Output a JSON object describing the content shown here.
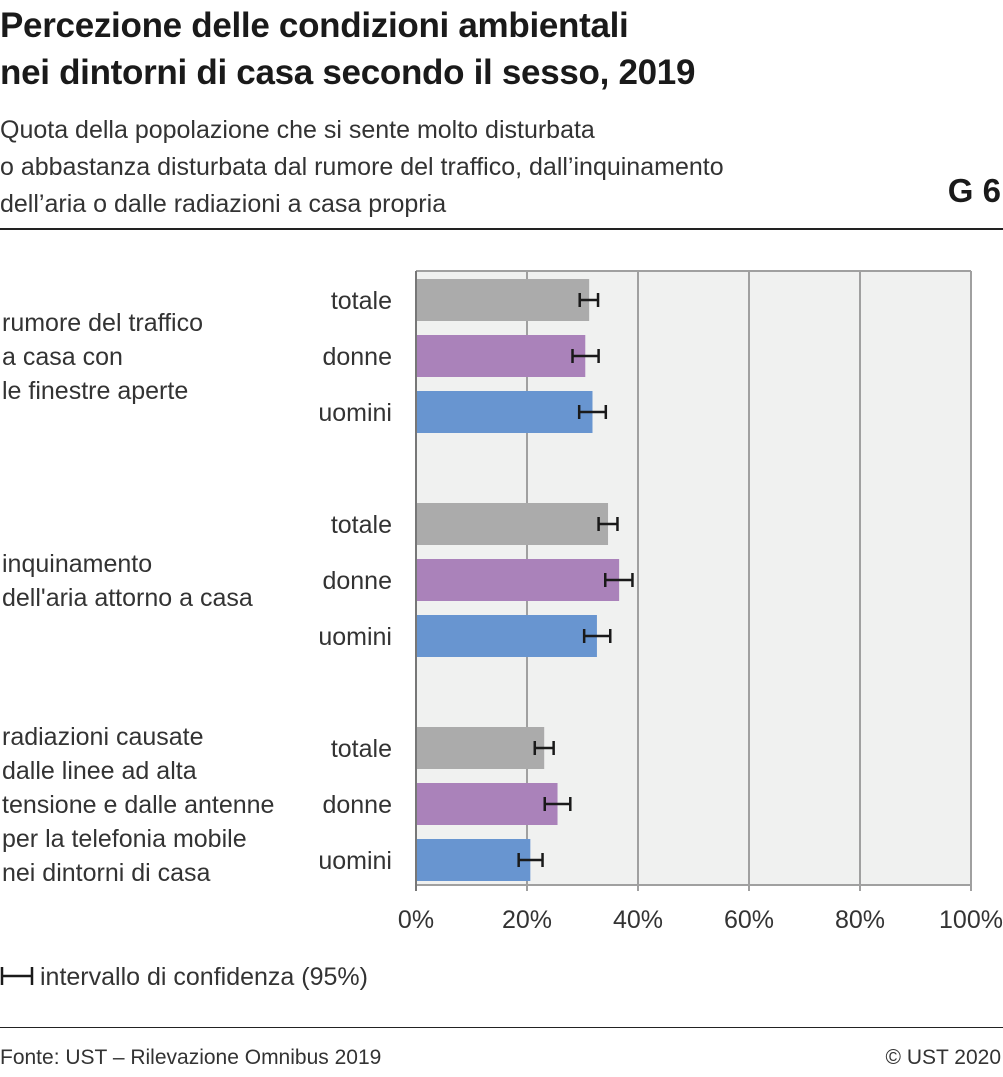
{
  "header": {
    "title_lines": [
      "Percezione delle condizioni ambientali",
      "nei dintorni di casa secondo il sesso, 2019"
    ],
    "subtitle_lines": [
      "Quota della popolazione che si sente molto disturbata",
      "o abbastanza disturbata dal rumore del traffico, dall’inquinamento",
      "dell’aria o dalle radiazioni a casa propria"
    ],
    "graph_number": "G 6"
  },
  "legend": {
    "ci_label": "intervallo di confidenza (95%)"
  },
  "footer": {
    "source": "Fonte: UST – Rilevazione Omnibus 2019",
    "copyright": "© UST 2020"
  },
  "colors": {
    "totale": "#ababab",
    "donne": "#aa82ba",
    "uomini": "#6895d0",
    "plot_bg": "#f0f1f0",
    "grid": "#a0a0a0"
  },
  "chart_data": {
    "type": "bar",
    "orientation": "horizontal",
    "xlim": [
      0,
      100
    ],
    "x_ticks": [
      "0%",
      "20%",
      "40%",
      "60%",
      "80%",
      "100%"
    ],
    "grid": true,
    "groups": [
      {
        "label_lines": [
          "rumore del traffico",
          "a casa con",
          "le finestre aperte"
        ],
        "bars": [
          {
            "label": "totale",
            "value": 31.2,
            "ci": [
              29.5,
              32.8
            ]
          },
          {
            "label": "donne",
            "value": 30.5,
            "ci": [
              28.2,
              32.9
            ]
          },
          {
            "label": "uomini",
            "value": 31.8,
            "ci": [
              29.4,
              34.2
            ]
          }
        ]
      },
      {
        "label_lines": [
          "inquinamento",
          "dell'aria attorno a casa"
        ],
        "bars": [
          {
            "label": "totale",
            "value": 34.6,
            "ci": [
              32.9,
              36.3
            ]
          },
          {
            "label": "donne",
            "value": 36.6,
            "ci": [
              34.1,
              39.0
            ]
          },
          {
            "label": "uomini",
            "value": 32.6,
            "ci": [
              30.3,
              35.0
            ]
          }
        ]
      },
      {
        "label_lines": [
          "radiazioni causate",
          "dalle linee ad alta",
          "tensione e dalle antenne",
          "per la telefonia mobile",
          "nei dintorni di casa"
        ],
        "bars": [
          {
            "label": "totale",
            "value": 23.1,
            "ci": [
              21.4,
              24.8
            ]
          },
          {
            "label": "donne",
            "value": 25.5,
            "ci": [
              23.2,
              27.8
            ]
          },
          {
            "label": "uomini",
            "value": 20.6,
            "ci": [
              18.5,
              22.8
            ]
          }
        ]
      }
    ]
  }
}
